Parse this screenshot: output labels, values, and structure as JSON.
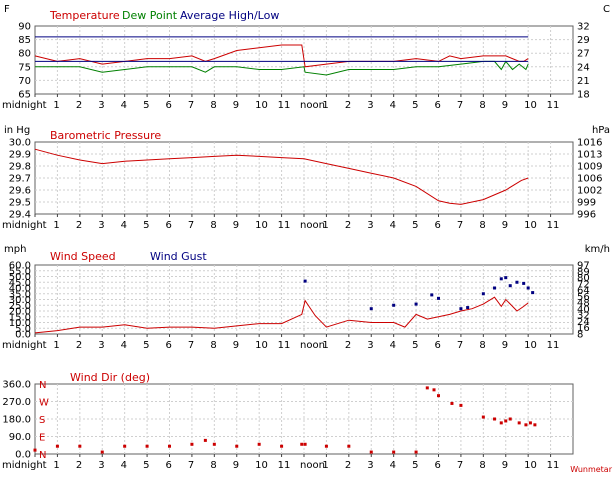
{
  "credit": "Wunmetar",
  "x_axis_labels": [
    "midnight",
    "1",
    "2",
    "3",
    "4",
    "5",
    "6",
    "7",
    "8",
    "9",
    "10",
    "11",
    "noon",
    "1",
    "2",
    "3",
    "4",
    "5",
    "6",
    "7",
    "8",
    "9",
    "10",
    "11"
  ],
  "colors": {
    "temperature": "#cc0000",
    "dew_point": "#008000",
    "average": "#000080",
    "pressure": "#cc0000",
    "wind_speed": "#cc0000",
    "wind_gust": "#000080",
    "wind_dir": "#cc0000",
    "frame": "#606060",
    "grid": "#cfcfcf"
  },
  "chart_data": [
    {
      "type": "line",
      "id": "temperature",
      "left_unit": "F",
      "right_unit": "C",
      "xlim": [
        0,
        24
      ],
      "ylim": [
        65,
        90
      ],
      "y_ticks": [
        "65",
        "70",
        "75",
        "80",
        "85",
        "90"
      ],
      "y2_ticks": [
        "18",
        "21",
        "24",
        "27",
        "29",
        "32"
      ],
      "series": [
        {
          "name": "Temperature",
          "color": "#cc0000",
          "x": [
            0,
            0.5,
            1,
            2,
            3,
            4,
            5,
            6,
            7,
            7.6,
            8,
            9,
            10,
            11,
            11.9,
            12.05,
            13,
            14,
            15,
            16,
            17,
            18,
            18.5,
            19,
            20,
            21,
            21.6,
            21.8,
            22
          ],
          "y": [
            79,
            78,
            77,
            78,
            76,
            77,
            78,
            78,
            79,
            77,
            78,
            81,
            82,
            83,
            83,
            75,
            76,
            77,
            77,
            77,
            78,
            77,
            79,
            78,
            79,
            79,
            77,
            77,
            78
          ]
        },
        {
          "name": "Dew Point",
          "color": "#008000",
          "x": [
            0,
            1,
            2,
            3,
            4,
            5,
            6,
            7,
            7.6,
            8,
            9,
            10,
            11,
            12,
            12.05,
            13,
            14,
            15,
            16,
            17,
            18,
            19,
            20,
            20.5,
            20.8,
            21,
            21.3,
            21.6,
            21.9,
            22
          ],
          "y": [
            75,
            75,
            75,
            73,
            74,
            75,
            75,
            75,
            73,
            75,
            75,
            74,
            74,
            75,
            73,
            72,
            74,
            74,
            74,
            75,
            75,
            76,
            77,
            77,
            74,
            77,
            74,
            76,
            74,
            76
          ]
        },
        {
          "name": "Average High/Low",
          "color": "#000080",
          "x": [
            0,
            22
          ],
          "y": [
            86,
            86
          ],
          "x2": [
            0,
            22
          ],
          "y2": [
            77,
            77
          ]
        }
      ]
    },
    {
      "type": "line",
      "id": "pressure",
      "left_unit": "in Hg",
      "right_unit": "hPa",
      "xlim": [
        0,
        24
      ],
      "ylim": [
        29.4,
        30.0
      ],
      "y_ticks": [
        "29.4",
        "29.5",
        "29.6",
        "29.7",
        "29.8",
        "29.9",
        "30.0"
      ],
      "y2_ticks": [
        "996",
        "999",
        "1002",
        "1006",
        "1009",
        "1013",
        "1016"
      ],
      "series": [
        {
          "name": "Barometric Pressure",
          "color": "#cc0000",
          "x": [
            0,
            1,
            2,
            3,
            4,
            5,
            6,
            7,
            8,
            9,
            10,
            11,
            12,
            13,
            14,
            15,
            16,
            17,
            18,
            18.5,
            19,
            20,
            21,
            21.7,
            22
          ],
          "y": [
            29.94,
            29.89,
            29.85,
            29.82,
            29.84,
            29.85,
            29.86,
            29.87,
            29.88,
            29.89,
            29.88,
            29.87,
            29.86,
            29.82,
            29.78,
            29.74,
            29.7,
            29.63,
            29.51,
            29.49,
            29.48,
            29.52,
            29.6,
            29.68,
            29.7
          ]
        }
      ]
    },
    {
      "type": "line",
      "id": "wind",
      "left_unit": "mph",
      "right_unit": "km/h",
      "xlim": [
        0,
        24
      ],
      "ylim": [
        0,
        60
      ],
      "y_ticks": [
        "0.0",
        "5.0",
        "10.0",
        "15.0",
        "20.0",
        "25.0",
        "30.0",
        "35.0",
        "40.0",
        "45.0",
        "50.0",
        "55.0",
        "60.0"
      ],
      "y2_ticks": [
        "8",
        "16",
        "24",
        "32",
        "40",
        "48",
        "56",
        "64",
        "72",
        "80",
        "89",
        "97"
      ],
      "series": [
        {
          "name": "Wind Speed",
          "color": "#cc0000",
          "x": [
            0,
            1,
            2,
            3,
            4,
            5,
            6,
            7,
            8,
            9,
            10,
            11,
            11.9,
            12.05,
            12.5,
            13,
            14,
            15,
            16,
            16.5,
            17,
            17.5,
            18,
            18.5,
            19,
            19.5,
            20,
            20.5,
            20.8,
            21,
            21.5,
            21.8,
            22
          ],
          "y": [
            1,
            3,
            6,
            6,
            8,
            5,
            6,
            6,
            5,
            7,
            9,
            9,
            17,
            29,
            16,
            6,
            12,
            10,
            10,
            6,
            17,
            13,
            15,
            17,
            20,
            22,
            26,
            32,
            24,
            30,
            20,
            24,
            27
          ]
        },
        {
          "name": "Wind Gust",
          "color": "#000080",
          "x": [
            12.05,
            15,
            16,
            17,
            17.7,
            18,
            19,
            19.3,
            20,
            20.5,
            20.8,
            21,
            21.2,
            21.5,
            21.8,
            22,
            22.2
          ],
          "y": [
            46,
            22,
            25,
            26,
            34,
            31,
            22,
            23,
            35,
            40,
            48,
            49,
            42,
            45,
            44,
            40,
            36
          ]
        }
      ]
    },
    {
      "type": "scatter",
      "id": "wind_dir",
      "left_unit": "",
      "right_unit": "",
      "xlim": [
        0,
        24
      ],
      "ylim": [
        0,
        360
      ],
      "y_ticks": [
        "0.0",
        "90.0",
        "180.0",
        "270.0",
        "360.0"
      ],
      "compass_labels": [
        "N",
        "E",
        "S",
        "W",
        "N"
      ],
      "series": [
        {
          "name": "Wind Dir (deg)",
          "color": "#cc0000",
          "x": [
            0,
            1,
            2,
            3,
            4,
            5,
            6,
            7,
            7.6,
            8,
            9,
            10,
            11,
            11.9,
            12.05,
            13,
            14,
            15,
            16,
            17,
            17.5,
            17.8,
            18,
            18.6,
            19,
            20,
            20.5,
            20.8,
            21,
            21.2,
            21.6,
            21.9,
            22.1,
            22.3
          ],
          "y": [
            20,
            40,
            40,
            10,
            40,
            40,
            40,
            50,
            70,
            50,
            40,
            50,
            40,
            50,
            50,
            40,
            40,
            10,
            10,
            10,
            340,
            330,
            300,
            260,
            250,
            190,
            180,
            160,
            170,
            180,
            160,
            150,
            160,
            150
          ]
        }
      ]
    }
  ]
}
